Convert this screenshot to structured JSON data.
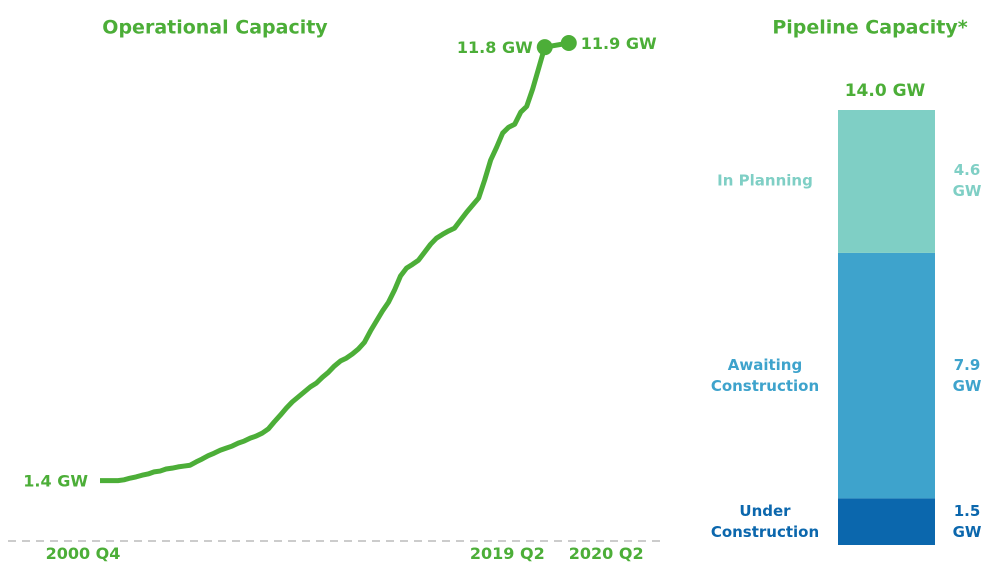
{
  "chart_data": [
    {
      "type": "line",
      "title": "Operational Capacity",
      "color": "#4cae38",
      "categories": [
        "2000 Q4",
        null,
        null,
        null,
        null,
        null,
        null,
        null,
        null,
        null,
        null,
        null,
        null,
        null,
        null,
        null,
        null,
        null,
        null,
        null,
        null,
        null,
        null,
        null,
        null,
        null,
        null,
        null,
        null,
        null,
        null,
        null,
        null,
        null,
        null,
        null,
        null,
        null,
        null,
        null,
        null,
        null,
        null,
        null,
        null,
        null,
        null,
        null,
        null,
        null,
        null,
        null,
        null,
        null,
        null,
        null,
        null,
        null,
        null,
        null,
        null,
        null,
        null,
        null,
        null,
        null,
        null,
        null,
        null,
        null,
        null,
        null,
        null,
        null,
        "2019 Q2"
      ],
      "ylim": [
        0,
        12.5
      ],
      "series": [
        {
          "color": "#4cae38",
          "values": [
            1.4,
            1.4,
            1.4,
            1.4,
            1.42,
            1.46,
            1.49,
            1.53,
            1.56,
            1.61,
            1.63,
            1.68,
            1.7,
            1.73,
            1.75,
            1.77,
            1.85,
            1.92,
            2.0,
            2.06,
            2.13,
            2.18,
            2.23,
            2.3,
            2.35,
            2.42,
            2.47,
            2.54,
            2.64,
            2.81,
            2.97,
            3.14,
            3.29,
            3.41,
            3.53,
            3.65,
            3.74,
            3.88,
            4.0,
            4.15,
            4.27,
            4.34,
            4.44,
            4.56,
            4.72,
            4.99,
            5.23,
            5.47,
            5.68,
            5.97,
            6.31,
            6.5,
            6.59,
            6.69,
            6.88,
            7.07,
            7.22,
            7.31,
            7.39,
            7.46,
            7.65,
            7.84,
            8.01,
            8.18,
            8.61,
            9.09,
            9.4,
            9.74,
            9.88,
            9.95,
            10.24,
            10.38,
            10.8,
            11.3,
            11.8
          ],
          "value_labels": [
            "1.4 GW",
            null,
            null,
            null,
            null,
            null,
            null,
            null,
            null,
            null,
            null,
            null,
            null,
            null,
            null,
            null,
            null,
            null,
            null,
            null,
            null,
            null,
            null,
            null,
            null,
            null,
            null,
            null,
            null,
            null,
            null,
            null,
            null,
            null,
            null,
            null,
            null,
            null,
            null,
            null,
            null,
            null,
            null,
            null,
            null,
            null,
            null,
            null,
            null,
            null,
            null,
            null,
            null,
            null,
            null,
            null,
            null,
            null,
            null,
            null,
            null,
            null,
            null,
            null,
            null,
            null,
            null,
            null,
            null,
            null,
            null,
            null,
            null,
            null,
            null
          ]
        },
        {
          "color": "#4cae38",
          "markers": true,
          "x": [
            "2019 Q2",
            "2020 Q2"
          ],
          "values": [
            11.8,
            11.9
          ],
          "value_labels": [
            "11.8 GW",
            "11.9 GW"
          ]
        }
      ]
    },
    {
      "type": "stacked_bar",
      "title": "Pipeline Capacity*",
      "ylim": [
        0,
        14
      ],
      "total": 14.0,
      "total_label": "14.0 GW",
      "total_color": "#4cae38",
      "series": [
        {
          "name": "Under Construction",
          "color": "#0b67ad",
          "values": [
            1.5
          ],
          "value_labels": [
            "1.5 GW"
          ]
        },
        {
          "name": "Awaiting Construction",
          "color": "#3ea3cc",
          "values": [
            7.9
          ],
          "value_labels": [
            "7.9 GW"
          ]
        },
        {
          "name": "In Planning",
          "color": "#7fcfc5",
          "values": [
            4.6
          ],
          "value_labels": [
            "4.6 GW"
          ]
        }
      ]
    }
  ]
}
